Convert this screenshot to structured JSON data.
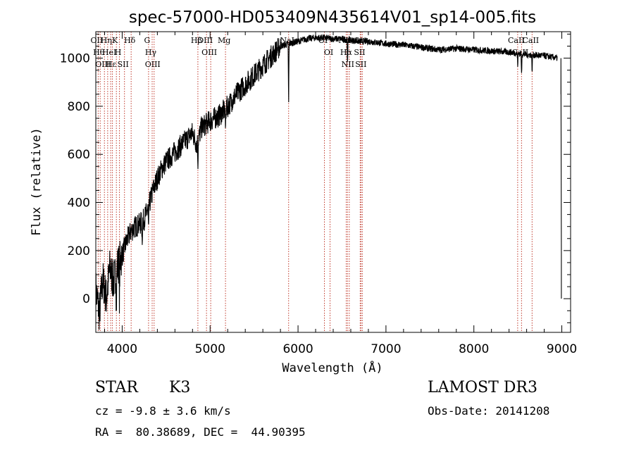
{
  "chart_data": {
    "type": "line",
    "title": "spec-57000-HD053409N435614V01_sp14-005.fits",
    "xlabel": "Wavelength (Å)",
    "ylabel": "Flux (relative)",
    "xlim": [
      3700,
      9100
    ],
    "ylim": [
      -140,
      1110
    ],
    "x_ticks": [
      4000,
      5000,
      6000,
      7000,
      8000,
      9000
    ],
    "y_ticks": [
      0,
      200,
      400,
      600,
      800,
      1000
    ],
    "spectrum_anchors": [
      [
        3700,
        40
      ],
      [
        3740,
        -60
      ],
      [
        3780,
        80
      ],
      [
        3820,
        0
      ],
      [
        3860,
        130
      ],
      [
        3900,
        70
      ],
      [
        3950,
        140
      ],
      [
        4000,
        180
      ],
      [
        4050,
        240
      ],
      [
        4100,
        280
      ],
      [
        4150,
        300
      ],
      [
        4200,
        310
      ],
      [
        4250,
        330
      ],
      [
        4300,
        380
      ],
      [
        4350,
        450
      ],
      [
        4400,
        500
      ],
      [
        4450,
        540
      ],
      [
        4500,
        570
      ],
      [
        4600,
        610
      ],
      [
        4700,
        650
      ],
      [
        4800,
        690
      ],
      [
        4850,
        640
      ],
      [
        4900,
        710
      ],
      [
        5000,
        740
      ],
      [
        5100,
        760
      ],
      [
        5200,
        800
      ],
      [
        5300,
        850
      ],
      [
        5400,
        890
      ],
      [
        5500,
        930
      ],
      [
        5600,
        970
      ],
      [
        5700,
        1010
      ],
      [
        5800,
        1050
      ],
      [
        5900,
        1060
      ],
      [
        6000,
        1070
      ],
      [
        6100,
        1080
      ],
      [
        6200,
        1085
      ],
      [
        6300,
        1085
      ],
      [
        6400,
        1080
      ],
      [
        6500,
        1080
      ],
      [
        6600,
        1075
      ],
      [
        6700,
        1070
      ],
      [
        6800,
        1070
      ],
      [
        6900,
        1065
      ],
      [
        7000,
        1060
      ],
      [
        7200,
        1055
      ],
      [
        7400,
        1045
      ],
      [
        7600,
        1035
      ],
      [
        7800,
        1040
      ],
      [
        8000,
        1035
      ],
      [
        8200,
        1030
      ],
      [
        8400,
        1025
      ],
      [
        8600,
        1015
      ],
      [
        8800,
        1010
      ],
      [
        8950,
        1000
      ]
    ],
    "absorption_features": [
      {
        "x": 3934,
        "depth": 160
      },
      {
        "x": 3969,
        "depth": 150
      },
      {
        "x": 4227,
        "depth": 80
      },
      {
        "x": 4300,
        "depth": 120
      },
      {
        "x": 4861,
        "depth": 90
      },
      {
        "x": 5175,
        "depth": 90
      },
      {
        "x": 5893,
        "depth": 260
      },
      {
        "x": 6563,
        "depth": 120
      },
      {
        "x": 8498,
        "depth": 50
      },
      {
        "x": 8542,
        "depth": 90
      },
      {
        "x": 8662,
        "depth": 70
      }
    ],
    "edge_segment": [
      [
        8990,
        850
      ],
      [
        8990,
        1000
      ],
      [
        8995,
        200
      ],
      [
        8995,
        0
      ]
    ],
    "line_markers": [
      {
        "x": 3727,
        "label": "OII"
      },
      {
        "x": 3750,
        "label": "Hθ"
      },
      {
        "x": 3798,
        "label": "OIII"
      },
      {
        "x": 3835,
        "label": "Hη"
      },
      {
        "x": 3869,
        "label": "HeI"
      },
      {
        "x": 3889,
        "label": "Hε"
      },
      {
        "x": 3934,
        "label": "K"
      },
      {
        "x": 3969,
        "label": "H"
      },
      {
        "x": 4026,
        "label": "SII"
      },
      {
        "x": 4102,
        "label": "Hδ"
      },
      {
        "x": 4300,
        "label": "G"
      },
      {
        "x": 4341,
        "label": "Hγ"
      },
      {
        "x": 4363,
        "label": "OIII"
      },
      {
        "x": 4861,
        "label": "Hβ"
      },
      {
        "x": 4959,
        "label": "OIII"
      },
      {
        "x": 5007,
        "label": "OIII"
      },
      {
        "x": 5175,
        "label": "Mg"
      },
      {
        "x": 5893,
        "label": "NaI"
      },
      {
        "x": 6300,
        "label": "OI"
      },
      {
        "x": 6364,
        "label": "OI"
      },
      {
        "x": 6548,
        "label": "NII"
      },
      {
        "x": 6563,
        "label": "Hα"
      },
      {
        "x": 6583,
        "label": "NII"
      },
      {
        "x": 6707,
        "label": "Li"
      },
      {
        "x": 6716,
        "label": "SII"
      },
      {
        "x": 6731,
        "label": "SII"
      },
      {
        "x": 8498,
        "label": "CaII"
      },
      {
        "x": 8542,
        "label": "CaII"
      },
      {
        "x": 8662,
        "label": "CaII"
      }
    ]
  },
  "info": {
    "object_type": "STAR",
    "subclass": "K3",
    "survey": "LAMOST DR3",
    "redshift": "cz = -9.8 ± 3.6 km/s",
    "obs_date": "Obs-Date: 20141208",
    "coords": "RA =  80.38689, DEC =  44.90395"
  }
}
